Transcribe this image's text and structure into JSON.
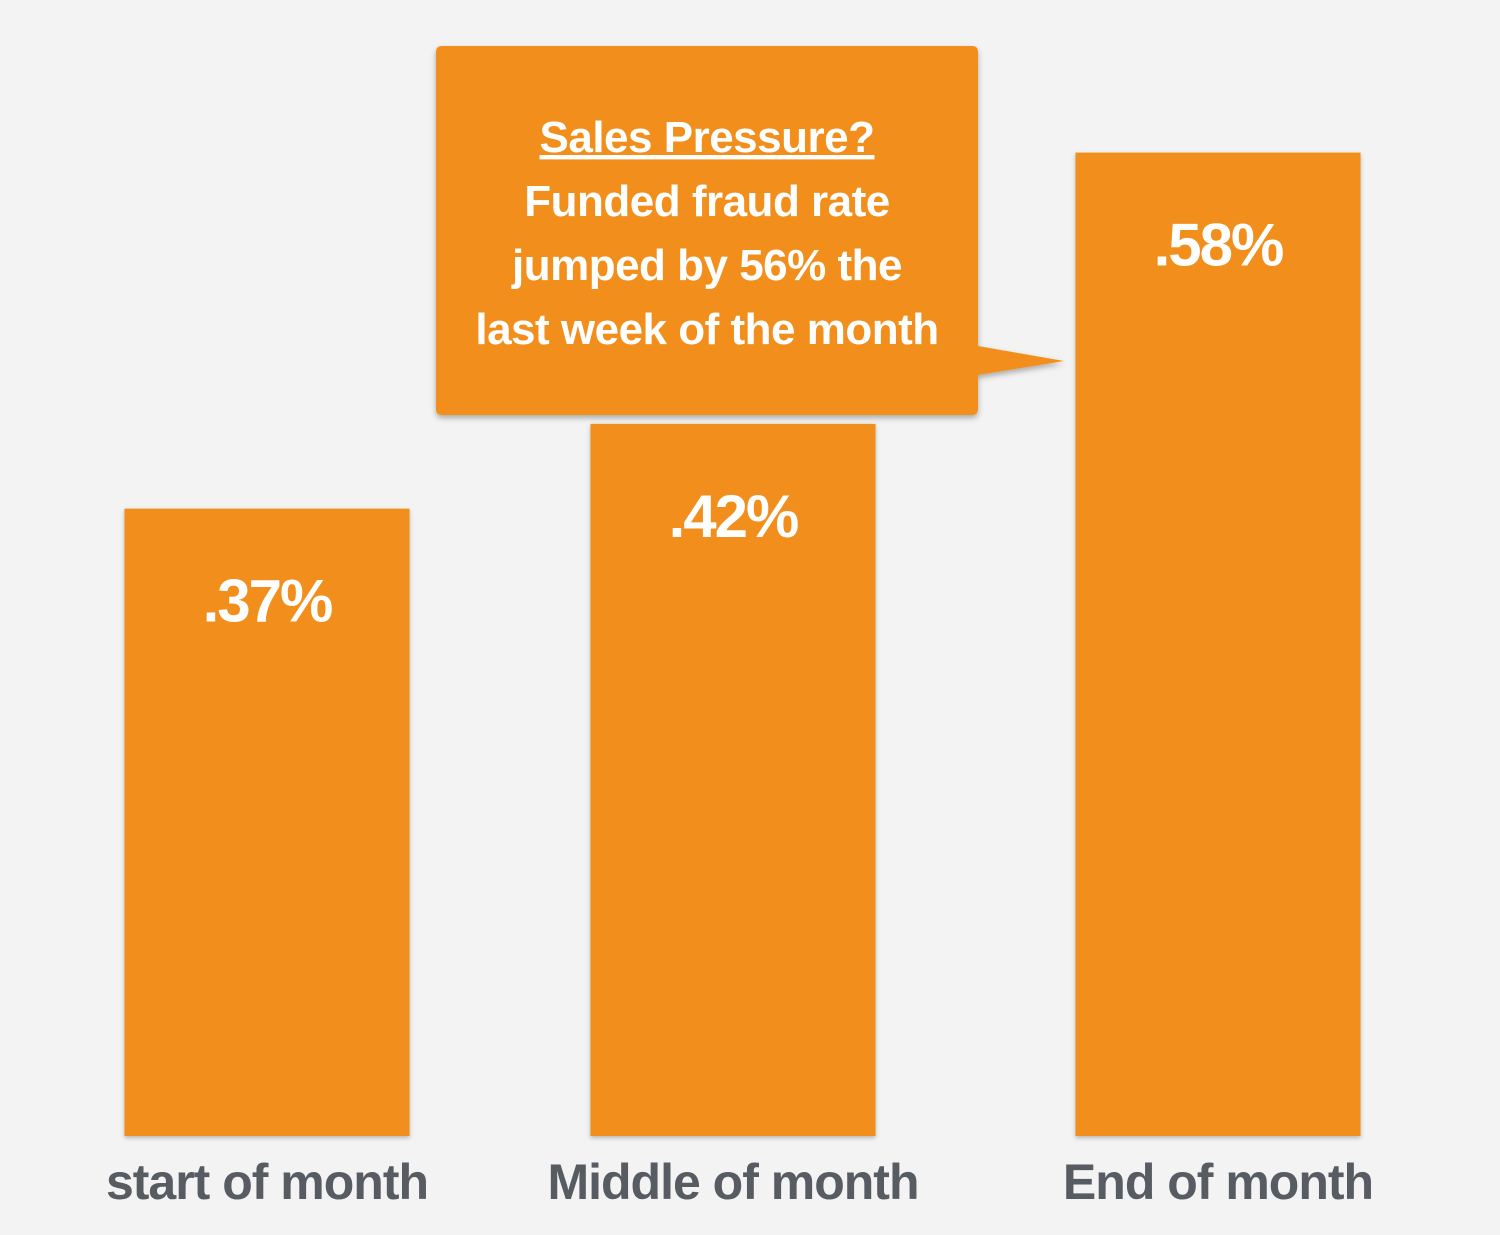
{
  "chart_data": {
    "type": "bar",
    "title": "",
    "xlabel": "",
    "ylabel": "",
    "categories": [
      "start of month",
      "Middle of month",
      "End of month"
    ],
    "values": [
      0.37,
      0.42,
      0.58
    ],
    "value_labels": [
      ".37%",
      ".42%",
      ".58%"
    ],
    "unit": "%",
    "ylim": [
      0,
      0.67
    ],
    "grid": false,
    "annotation": {
      "target_category": "End of month",
      "title": "Sales Pressure?",
      "lines": [
        "Funded fraud rate",
        "jumped by 56% the",
        "last week of the month"
      ]
    }
  },
  "colors": {
    "background": "#f2f3f2",
    "bar": "#f28f1b",
    "value_text": "#ffffff",
    "category_text": "#575b62"
  }
}
